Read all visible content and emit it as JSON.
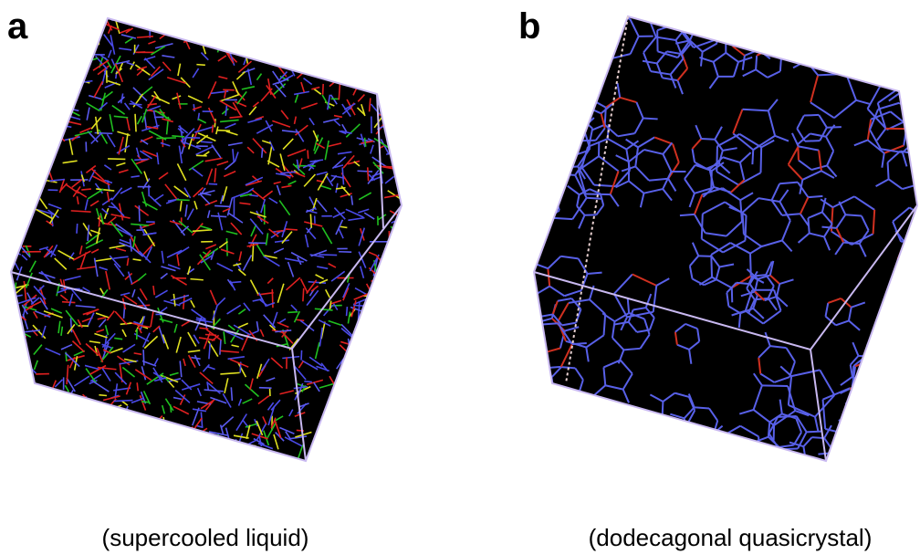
{
  "panels": [
    {
      "label": "a",
      "caption": "(supercooled liquid)"
    },
    {
      "label": "b",
      "caption": "(dodecagonal quasicrystal)"
    }
  ]
}
